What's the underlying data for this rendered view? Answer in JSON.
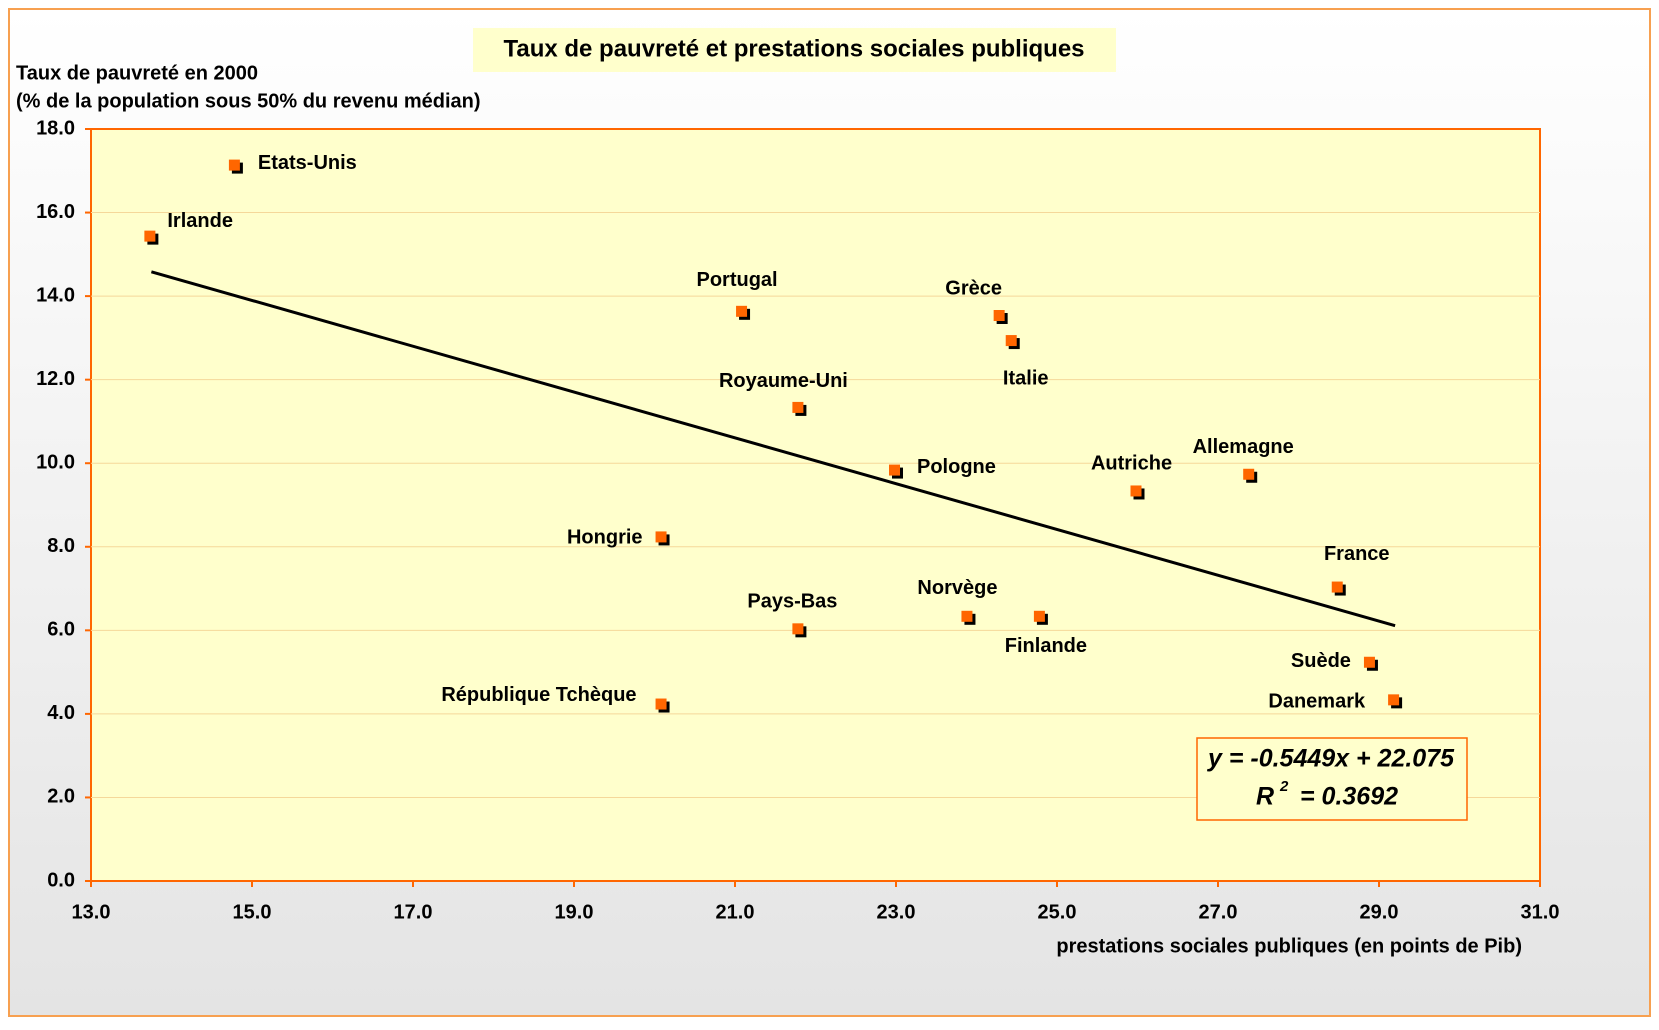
{
  "chart_data": {
    "type": "scatter",
    "title": "Taux de pauvreté et prestations sociales publiques",
    "y_label": [
      "Taux de pauvreté en 2000",
      "(% de la population sous 50% du revenu médian)"
    ],
    "x_label": "prestations sociales publiques (en points de Pib)",
    "equation": "y = -0.5449x + 22.075",
    "r2": {
      "symbol": "R",
      "exponent": "2",
      "text": "= 0.3692"
    },
    "labels": [
      "Etats-Unis",
      "Irlande",
      "Portugal",
      "Grèce",
      "Italie",
      "Royaume-Uni",
      "Pologne",
      "Autriche",
      "Allemagne",
      "Hongrie",
      "France",
      "Pays-Bas",
      "Norvège",
      "Finlande",
      "Suède",
      "Danemark",
      "République Tchèque"
    ],
    "x": [
      14.8,
      13.75,
      21.1,
      24.3,
      24.45,
      21.8,
      23.0,
      26.0,
      27.4,
      20.1,
      28.5,
      21.8,
      23.9,
      24.8,
      28.9,
      29.2,
      20.1
    ],
    "values": [
      17.1,
      15.4,
      13.6,
      13.5,
      12.9,
      11.3,
      9.8,
      9.3,
      9.7,
      8.2,
      7.0,
      6.0,
      6.3,
      6.3,
      5.2,
      4.3,
      4.2
    ],
    "color": "#ff6600",
    "grid": true,
    "xlim": [
      13,
      31
    ],
    "xticks": [
      {
        "value": 13,
        "label": "13.0"
      },
      {
        "value": 15,
        "label": "15.0"
      },
      {
        "value": 17,
        "label": "17.0"
      },
      {
        "value": 19,
        "label": "19.0"
      },
      {
        "value": 21,
        "label": "21.0"
      },
      {
        "value": 23,
        "label": "23.0"
      },
      {
        "value": 25,
        "label": "25.0"
      },
      {
        "value": 27,
        "label": "27.0"
      },
      {
        "value": 29,
        "label": "29.0"
      },
      {
        "value": 31,
        "label": "31.0"
      }
    ],
    "ylim": [
      0,
      18
    ],
    "yticks": [
      {
        "value": 0,
        "label": "0.0"
      },
      {
        "value": 2,
        "label": "2.0"
      },
      {
        "value": 4,
        "label": "4.0"
      },
      {
        "value": 6,
        "label": "6.0"
      },
      {
        "value": 8,
        "label": "8.0"
      },
      {
        "value": 10,
        "label": "10.0"
      },
      {
        "value": 12,
        "label": "12.0"
      },
      {
        "value": 14,
        "label": "14.0"
      },
      {
        "value": 16,
        "label": "16.0"
      },
      {
        "value": 18,
        "label": "18.0"
      }
    ]
  }
}
